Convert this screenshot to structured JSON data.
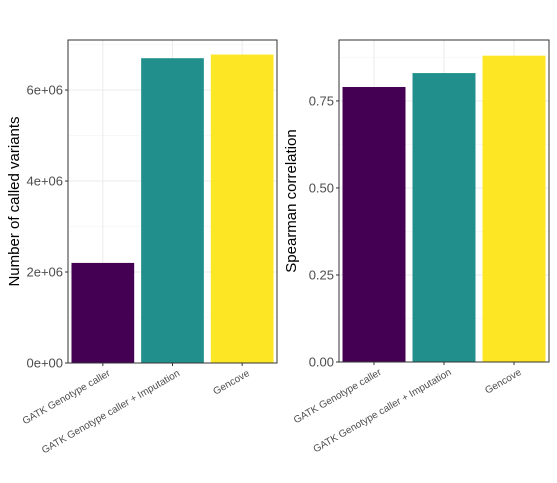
{
  "chart_data": [
    {
      "type": "bar",
      "categories": [
        "GATK Genotype caller",
        "GATK Genotype caller + Imputation",
        "Gencove"
      ],
      "values": [
        2200000,
        6700000,
        6780000
      ],
      "colors": [
        "#440154",
        "#21908C",
        "#FDE725"
      ],
      "title": "",
      "xlabel": "",
      "ylabel": "Number of called variants",
      "ylim": [
        0,
        7100000
      ],
      "yticks": [
        0,
        2000000,
        4000000,
        6000000
      ],
      "ytick_labels": [
        "0e+00",
        "2e+06",
        "4e+06",
        "6e+06"
      ],
      "grid": true,
      "legend": "none"
    },
    {
      "type": "bar",
      "categories": [
        "GATK Genotype caller",
        "GATK Genotype caller + Imputation",
        "Gencove"
      ],
      "values": [
        0.79,
        0.83,
        0.88
      ],
      "colors": [
        "#440154",
        "#21908C",
        "#FDE725"
      ],
      "title": "",
      "xlabel": "",
      "ylabel": "Spearman correlation",
      "ylim": [
        0,
        0.925
      ],
      "yticks": [
        0,
        0.25,
        0.5,
        0.75
      ],
      "ytick_labels": [
        "0.00",
        "0.25",
        "0.50",
        "0.75"
      ],
      "grid": true,
      "legend": "none"
    }
  ]
}
